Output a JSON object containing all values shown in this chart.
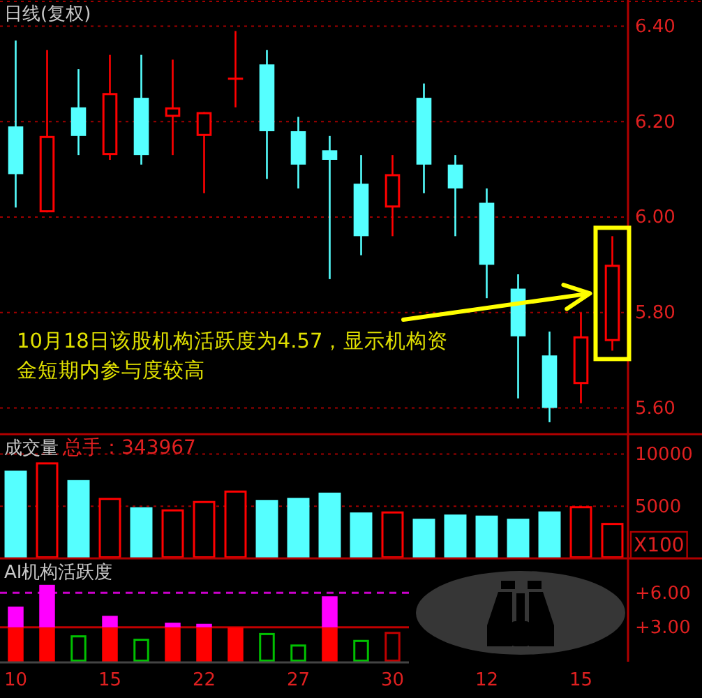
{
  "chart_data": [
    {
      "type": "candlestick",
      "title": "日线(复权)",
      "categories": [
        "10",
        null,
        null,
        "15",
        null,
        null,
        "22",
        null,
        null,
        "27",
        null,
        null,
        "30",
        null,
        null,
        "12",
        null,
        null,
        "15",
        null
      ],
      "ohlc": [
        [
          6.19,
          6.37,
          6.02,
          6.09
        ],
        [
          6.01,
          6.35,
          6.01,
          6.17
        ],
        [
          6.23,
          6.31,
          6.13,
          6.17
        ],
        [
          6.13,
          6.34,
          6.12,
          6.26
        ],
        [
          6.25,
          6.34,
          6.11,
          6.13
        ],
        [
          6.21,
          6.33,
          6.13,
          6.23
        ],
        [
          6.17,
          6.22,
          6.05,
          6.22
        ],
        [
          6.29,
          6.39,
          6.23,
          6.29
        ],
        [
          6.32,
          6.35,
          6.08,
          6.18
        ],
        [
          6.18,
          6.21,
          6.06,
          6.11
        ],
        [
          6.14,
          6.17,
          5.87,
          6.12
        ],
        [
          6.07,
          6.13,
          5.92,
          5.96
        ],
        [
          6.02,
          6.13,
          5.96,
          6.09
        ],
        [
          6.25,
          6.28,
          6.05,
          6.11
        ],
        [
          6.11,
          6.13,
          5.96,
          6.06
        ],
        [
          6.03,
          6.06,
          5.83,
          5.9
        ],
        [
          5.85,
          5.88,
          5.62,
          5.75
        ],
        [
          5.71,
          5.76,
          5.57,
          5.6
        ],
        [
          5.65,
          5.8,
          5.61,
          5.75
        ],
        [
          5.74,
          5.96,
          5.72,
          5.9
        ]
      ],
      "colors": [
        "#55ffff",
        "#ff0000",
        "#55ffff",
        "#ff0000",
        "#55ffff",
        "#ff0000",
        "#ff0000",
        "#ff0000",
        "#55ffff",
        "#55ffff",
        "#55ffff",
        "#55ffff",
        "#ff0000",
        "#55ffff",
        "#55ffff",
        "#55ffff",
        "#55ffff",
        "#55ffff",
        "#ff0000",
        "#ff0000"
      ],
      "ylim": [
        5.545,
        6.455
      ],
      "yticks": [
        {
          "value": 5.6,
          "label": "5.60"
        },
        {
          "value": 5.8,
          "label": "5.80"
        },
        {
          "value": 6.0,
          "label": "6.00"
        },
        {
          "value": 6.2,
          "label": "6.20"
        },
        {
          "value": 6.4,
          "label": "6.40"
        }
      ],
      "grid": "y",
      "tick_labels": "y",
      "annotations": [
        "10月18日该股机构活跃度为4.57，显示机构资金短期内参与度较高"
      ]
    },
    {
      "type": "bar",
      "title": "成交量",
      "subtitle": "总手：343967",
      "ylabel": "X100",
      "categories": [
        "10",
        null,
        null,
        "15",
        null,
        null,
        "22",
        null,
        null,
        "27",
        null,
        null,
        "30",
        null,
        null,
        "12",
        null,
        null,
        "15",
        null
      ],
      "values": [
        8400,
        9200,
        7500,
        5800,
        4900,
        4700,
        5500,
        6500,
        5600,
        5800,
        6300,
        4400,
        4500,
        3800,
        4200,
        4100,
        3800,
        4500,
        5000,
        3400
      ],
      "colors": [
        "#55ffff",
        "#ff0000",
        "#55ffff",
        "#ff0000",
        "#55ffff",
        "#ff0000",
        "#ff0000",
        "#ff0000",
        "#55ffff",
        "#55ffff",
        "#55ffff",
        "#55ffff",
        "#ff0000",
        "#55ffff",
        "#55ffff",
        "#55ffff",
        "#55ffff",
        "#55ffff",
        "#ff0000",
        "#ff0000"
      ],
      "ylim": [
        0,
        11900
      ],
      "yticks": [
        5000,
        10000
      ],
      "grid": "y",
      "tick_labels": "y"
    },
    {
      "type": "bar",
      "title": "AI机构活跃度",
      "categories": [
        "10",
        null,
        null,
        "15",
        null,
        null,
        "22",
        null,
        null,
        "27",
        null,
        null,
        "30",
        null,
        null,
        "12",
        null,
        null,
        "15",
        null
      ],
      "stacked": true,
      "series": [
        {
          "values": [
            3,
            3,
            2.3,
            3,
            2.0,
            3,
            3,
            3,
            2.5,
            1.5,
            3,
            1.9,
            2.6,
            null,
            null,
            null,
            null,
            null,
            null,
            null
          ],
          "colors": [
            "#ff0000",
            "#ff0000",
            "#00c000",
            "#ff0000",
            "#00c000",
            "#ff0000",
            "#ff0000",
            "#ff0000",
            "#00c000",
            "#00c000",
            "#ff0000",
            "#00c000",
            "#c00000",
            null,
            null,
            null,
            null,
            null,
            null,
            null
          ]
        },
        {
          "values": [
            1.8,
            3.7,
            null,
            1.0,
            null,
            0.4,
            0.3,
            null,
            null,
            null,
            2.7,
            null,
            null,
            null,
            null,
            null,
            null,
            null,
            null,
            null
          ],
          "color": "#ff00ff"
        }
      ],
      "ylim": [
        0,
        9
      ],
      "yticks": [
        {
          "value": 3,
          "label": "+3.00"
        },
        {
          "value": 6,
          "label": "+6.00"
        }
      ],
      "ref_lines": [
        {
          "axis": "y",
          "value": 6,
          "color": "#cc00cc",
          "line_style": "dashed"
        },
        {
          "axis": "y",
          "value": 3,
          "color": "#c00000",
          "line_style": "solid"
        }
      ]
    }
  ]
}
